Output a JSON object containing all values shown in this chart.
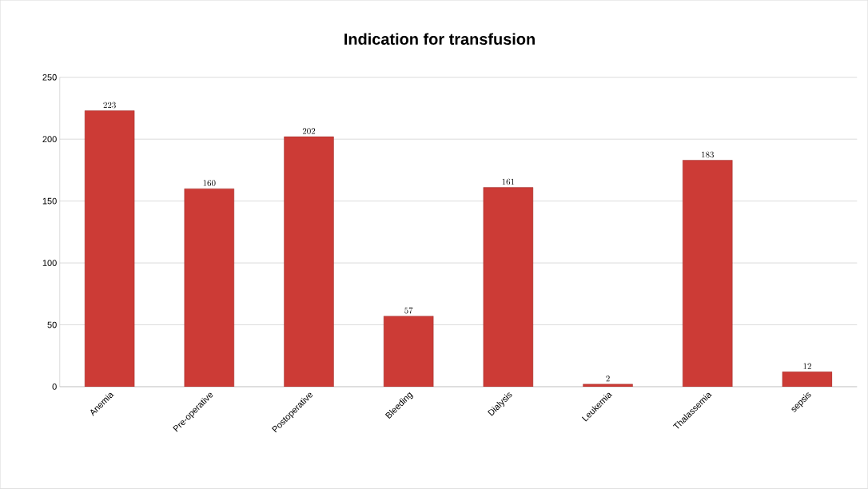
{
  "chart_data": {
    "type": "bar",
    "title": "Indication for transfusion",
    "categories": [
      "Anemia",
      "Pre-operative",
      "Postoperative",
      "Bleeding",
      "Dialysis",
      "Leukemia",
      "Thalassemia",
      "sepsis"
    ],
    "values": [
      223,
      160,
      202,
      57,
      161,
      2,
      183,
      12
    ],
    "color": "#cc3b36",
    "ylim": [
      0,
      250
    ],
    "yticks": [
      0,
      50,
      100,
      150,
      200,
      250
    ],
    "grid": "y",
    "data_labels": true
  }
}
